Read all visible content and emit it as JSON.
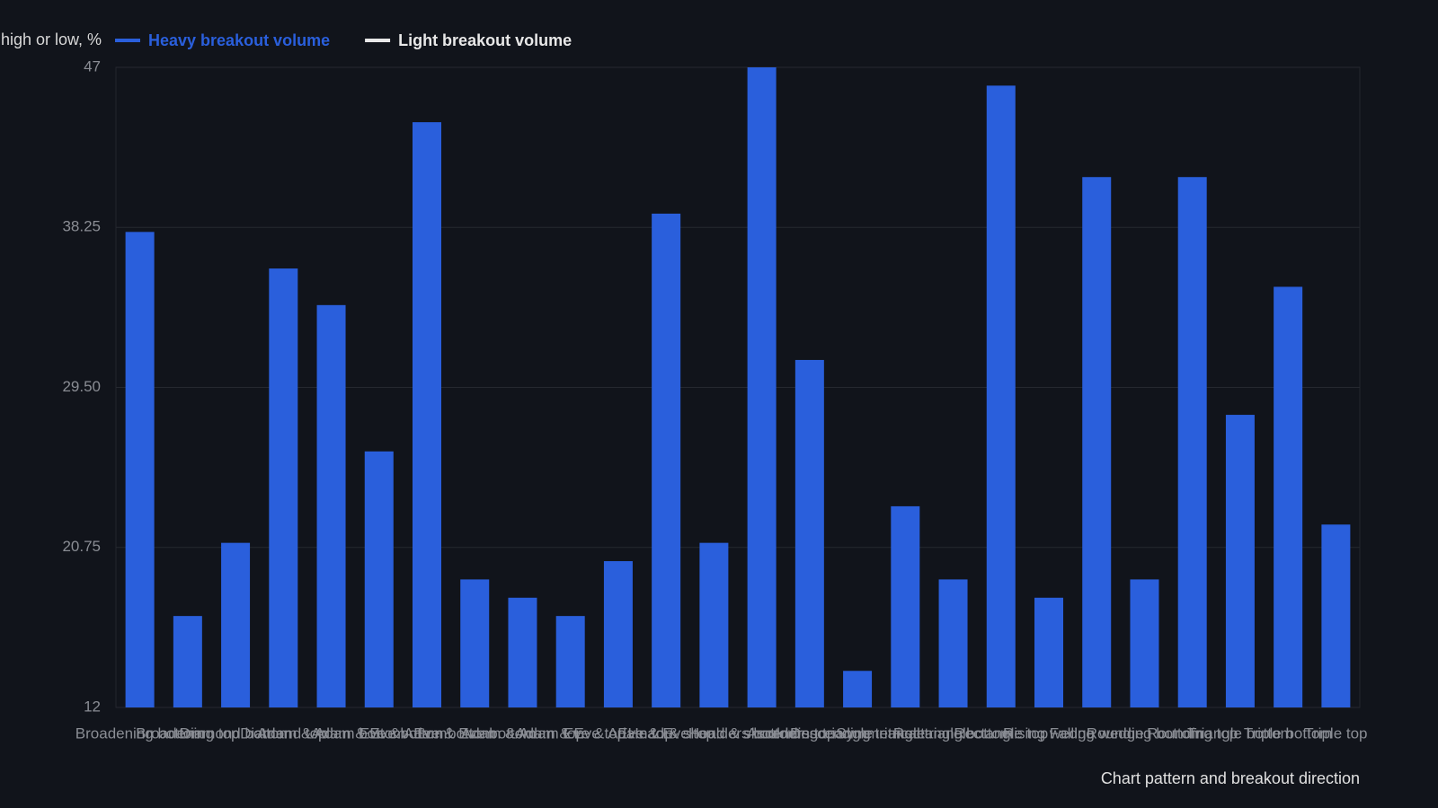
{
  "chart_data": {
    "type": "bar",
    "y_axis_label": "high or low, %",
    "x_axis_label": "Chart pattern and breakout direction",
    "categories": [
      "Broadening bottom",
      "Broadening top",
      "Diamond bottom",
      "Diamond top",
      "Adam & Adam bottom",
      "Adam & Eve bottom",
      "Eve & Adam bottom",
      "Eve & Eve bottom",
      "Adam & Adam top",
      "Adam & Eve top",
      "Eve & Adam top",
      "Eve & Eve top",
      "Head & shoulders bottom",
      "Head & shoulders top",
      "Ascending triangle",
      "Descending triangle",
      "Symmetrical triangle",
      "Rectangle bottom",
      "Rectangle top",
      "Rising wedge",
      "Falling wedge",
      "Rounding bottom",
      "Rounding top",
      "Triangle bottom",
      "Triple bottom",
      "Triple top"
    ],
    "series": [
      {
        "name": "Heavy breakout volume",
        "color": "#2a5fdc",
        "values": [
          38,
          17,
          21,
          36,
          34,
          26,
          44,
          19,
          18,
          17,
          20,
          39,
          21,
          47,
          31,
          14,
          23,
          19,
          46,
          18,
          41,
          19,
          41,
          28,
          35,
          22
        ]
      },
      {
        "name": "Light breakout volume",
        "color": "#e8e8e8",
        "values": [
          null,
          null,
          null,
          null,
          null,
          null,
          null,
          null,
          null,
          null,
          null,
          null,
          null,
          null,
          null,
          null,
          null,
          null,
          null,
          null,
          null,
          null,
          null,
          null,
          null,
          null
        ]
      }
    ],
    "ylim": [
      12,
      47
    ],
    "yticks": [
      12,
      {
        "value": 20.75,
        "label": "20.75"
      },
      {
        "value": 29.5,
        "label": "29.50"
      },
      {
        "value": 38.25,
        "label": "38.25"
      },
      47
    ],
    "grid": true
  }
}
